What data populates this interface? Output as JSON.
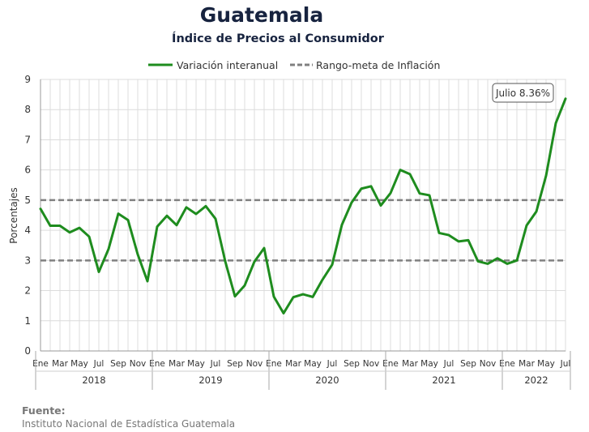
{
  "chart_data": {
    "type": "line",
    "title": "Guatemala",
    "subtitle": "Índice de Precios al Consumidor",
    "ylabel": "Porcentajes",
    "ylim": [
      0,
      9
    ],
    "yticks": [
      "0",
      "1",
      "2",
      "3",
      "4",
      "5",
      "6",
      "7",
      "8",
      "9"
    ],
    "grid": true,
    "legend_position": "top",
    "month_labels": [
      "Ene",
      "Mar",
      "May",
      "Jul",
      "Sep",
      "Nov"
    ],
    "last_month_label": "Jul",
    "years": [
      "2018",
      "2019",
      "2020",
      "2021",
      "2022"
    ],
    "series": [
      {
        "name": "Variación interanual",
        "color": "#1e8c1e",
        "start": "2018-01",
        "end": "2022-07",
        "values": [
          4.71,
          4.15,
          4.15,
          3.93,
          4.08,
          3.79,
          2.62,
          3.38,
          4.55,
          4.34,
          3.2,
          2.31,
          4.12,
          4.48,
          4.17,
          4.76,
          4.54,
          4.8,
          4.38,
          2.97,
          1.81,
          2.17,
          2.96,
          3.41,
          1.8,
          1.25,
          1.78,
          1.88,
          1.79,
          2.36,
          2.86,
          4.18,
          4.92,
          5.38,
          5.46,
          4.82,
          5.23,
          6.0,
          5.86,
          5.22,
          5.16,
          3.91,
          3.84,
          3.63,
          3.67,
          2.97,
          2.89,
          3.07,
          2.89,
          3.0,
          4.16,
          4.62,
          5.81,
          7.55,
          8.36
        ]
      },
      {
        "name": "Rango-meta de Inflación",
        "color": "#808080",
        "style": "dashed",
        "bounds": [
          3,
          5
        ]
      }
    ],
    "annotation": "Julio 8.36%"
  },
  "footer": {
    "source_label": "Fuente:",
    "source_text": "Instituto Nacional de Estadística Guatemala"
  }
}
